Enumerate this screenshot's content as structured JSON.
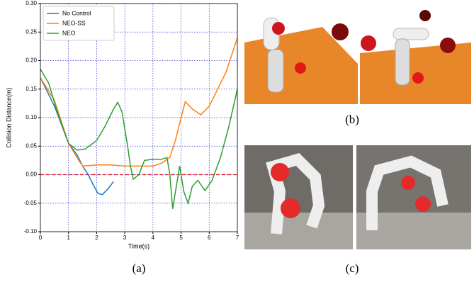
{
  "chart_data": {
    "type": "line",
    "x_label": "Time(s)",
    "y_label": "Collision Distance(m)",
    "xlim": [
      0,
      7
    ],
    "xticks": [
      0,
      1,
      2,
      3,
      4,
      5,
      6,
      7
    ],
    "ylim": [
      -0.1,
      0.3
    ],
    "yticks": [
      {
        "value": -0.1,
        "label": "-0.10"
      },
      {
        "value": -0.05,
        "label": "-0.05"
      },
      {
        "value": 0,
        "label": "0.00"
      },
      {
        "value": 0.05,
        "label": "0.05"
      },
      {
        "value": 0.1,
        "label": "0.10"
      },
      {
        "value": 0.15,
        "label": "0.15"
      },
      {
        "value": 0.2,
        "label": "0.20"
      },
      {
        "value": 0.25,
        "label": "0.25"
      },
      {
        "value": 0.3,
        "label": "0.30"
      }
    ],
    "grid": true,
    "legend": "upper-left",
    "reference_line": {
      "value": 0,
      "color": "#e8141a"
    },
    "series": [
      {
        "name": "No Control",
        "color": "#1f77b4",
        "x": [
          0,
          0.5,
          1,
          1.3,
          1.5,
          1.7,
          1.9,
          2.05,
          2.2,
          2.4,
          2.6
        ],
        "values": [
          0.17,
          0.12,
          0.055,
          0.035,
          0.015,
          0.0,
          -0.02,
          -0.033,
          -0.035,
          -0.025,
          -0.012
        ]
      },
      {
        "name": "NEO-SS",
        "color": "#ff7f0e",
        "x": [
          0,
          0.5,
          1,
          1.3,
          1.5,
          2,
          2.5,
          3,
          3.5,
          4,
          4.3,
          4.6,
          4.8,
          5.0,
          5.15,
          5.4,
          5.7,
          6,
          6.3,
          6.6,
          7
        ],
        "values": [
          0.17,
          0.13,
          0.055,
          0.03,
          0.015,
          0.017,
          0.017,
          0.015,
          0.015,
          0.015,
          0.02,
          0.03,
          0.06,
          0.1,
          0.128,
          0.115,
          0.105,
          0.12,
          0.15,
          0.18,
          0.24
        ]
      },
      {
        "name": "NEO",
        "color": "#2ca02c",
        "x": [
          0,
          0.3,
          0.6,
          1,
          1.3,
          1.6,
          2,
          2.3,
          2.6,
          2.75,
          2.9,
          3.1,
          3.2,
          3.3,
          3.5,
          3.7,
          4,
          4.3,
          4.5,
          4.6,
          4.7,
          4.8,
          4.95,
          5.1,
          5.25,
          5.4,
          5.6,
          5.85,
          6.1,
          6.4,
          6.7,
          7
        ],
        "values": [
          0.185,
          0.16,
          0.11,
          0.055,
          0.043,
          0.045,
          0.06,
          0.085,
          0.115,
          0.127,
          0.11,
          0.05,
          0.015,
          -0.008,
          0.0,
          0.025,
          0.027,
          0.027,
          0.03,
          0.0,
          -0.06,
          -0.03,
          0.015,
          -0.03,
          -0.05,
          -0.02,
          -0.01,
          -0.028,
          -0.01,
          0.03,
          0.085,
          0.15
        ]
      }
    ]
  },
  "captions": [
    "(a)",
    "(b)",
    "(c)"
  ]
}
